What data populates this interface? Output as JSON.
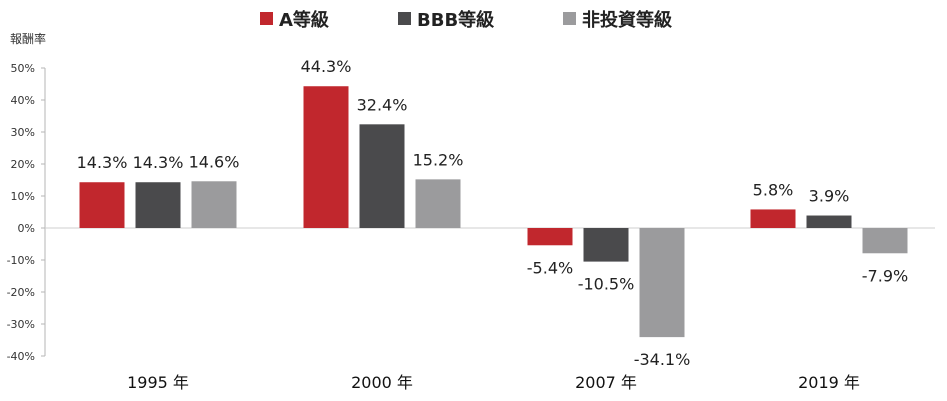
{
  "chart_data": {
    "type": "bar",
    "ylabel": "報酬率",
    "ylim": [
      -40,
      50
    ],
    "yticks": [
      "50%",
      "40%",
      "30%",
      "20%",
      "10%",
      "0%",
      "-10%",
      "-20%",
      "-30%",
      "-40%"
    ],
    "ytick_values": [
      50,
      40,
      30,
      20,
      10,
      0,
      -10,
      -20,
      -30,
      -40
    ],
    "categories": [
      "1995 年",
      "2000 年",
      "2007 年",
      "2019 年"
    ],
    "series": [
      {
        "name": "A等級",
        "color": "#c1272d",
        "values": [
          14.3,
          44.3,
          -5.4,
          5.8
        ],
        "labels": [
          "14.3%",
          "44.3%",
          "-5.4%",
          "5.8%"
        ]
      },
      {
        "name": "BBB等級",
        "color": "#4a4a4c",
        "values": [
          14.3,
          32.4,
          -10.5,
          3.9
        ],
        "labels": [
          "14.3%",
          "32.4%",
          "-10.5%",
          "3.9%"
        ]
      },
      {
        "name": "非投資等級",
        "color": "#9b9b9d",
        "values": [
          14.6,
          15.2,
          -34.1,
          -7.9
        ],
        "labels": [
          "14.6%",
          "15.2%",
          "-34.1%",
          "-7.9%"
        ]
      }
    ],
    "legend_position": "top-center",
    "grid": false
  }
}
